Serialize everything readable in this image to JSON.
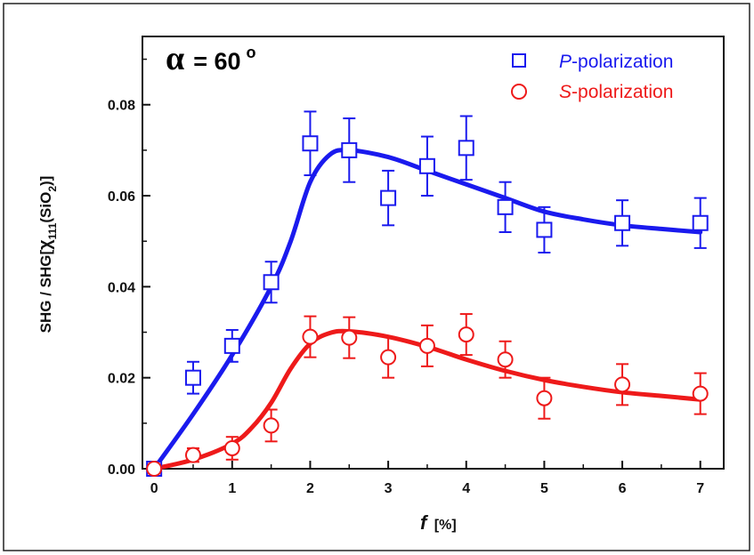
{
  "chart_data": {
    "type": "scatter",
    "annotation": {
      "symbol": "α",
      "text": "= 60",
      "degree": "o"
    },
    "xlabel": {
      "main": "f",
      "unit": "[%]"
    },
    "ylabel": {
      "prefix": "SHG / SHG[",
      "chi": "χ",
      "chi_sub": "111",
      "paren_open": "(SiO",
      "sio_sub": "2",
      "close": ")]"
    },
    "xlim": [
      -0.15,
      7.3
    ],
    "ylim": [
      0.0,
      0.095
    ],
    "xticks": [
      0,
      1,
      2,
      3,
      4,
      5,
      6,
      7
    ],
    "yticks": [
      0.0,
      0.02,
      0.04,
      0.06,
      0.08
    ],
    "xtick_labels": [
      "0",
      "1",
      "2",
      "3",
      "4",
      "5",
      "6",
      "7"
    ],
    "ytick_labels": [
      "0.00",
      "0.02",
      "0.04",
      "0.06",
      "0.08"
    ],
    "grid": false,
    "legend": {
      "placement": "top-right"
    },
    "series": [
      {
        "name_prefix": "P",
        "name_suffix": "-polarization",
        "marker": "square",
        "color": "#1a1aee",
        "x": [
          0,
          0.5,
          1.0,
          1.5,
          2.0,
          2.5,
          3.0,
          3.5,
          4.0,
          4.5,
          5.0,
          6.0,
          7.0
        ],
        "y": [
          0.0,
          0.02,
          0.027,
          0.041,
          0.0715,
          0.07,
          0.0595,
          0.0665,
          0.0705,
          0.0575,
          0.0525,
          0.054,
          0.054
        ],
        "err": [
          0.001,
          0.0035,
          0.0035,
          0.0045,
          0.007,
          0.007,
          0.006,
          0.0065,
          0.007,
          0.0055,
          0.005,
          0.005,
          0.0055
        ],
        "fit": [
          [
            0,
            0.0
          ],
          [
            0.5,
            0.012
          ],
          [
            1.0,
            0.025
          ],
          [
            1.5,
            0.04
          ],
          [
            1.75,
            0.05
          ],
          [
            2.0,
            0.063
          ],
          [
            2.25,
            0.069
          ],
          [
            2.5,
            0.07
          ],
          [
            3.0,
            0.0685
          ],
          [
            3.5,
            0.0655
          ],
          [
            4.0,
            0.0625
          ],
          [
            4.5,
            0.0595
          ],
          [
            5.0,
            0.0565
          ],
          [
            5.5,
            0.0548
          ],
          [
            6.0,
            0.0535
          ],
          [
            6.5,
            0.0527
          ],
          [
            7.0,
            0.052
          ]
        ]
      },
      {
        "name_prefix": "S",
        "name_suffix": "-polarization",
        "marker": "circle",
        "color": "#ee1a1a",
        "x": [
          0,
          0.5,
          1.0,
          1.5,
          2.0,
          2.5,
          3.0,
          3.5,
          4.0,
          4.5,
          5.0,
          6.0,
          7.0
        ],
        "y": [
          0.0,
          0.003,
          0.0045,
          0.0095,
          0.029,
          0.0288,
          0.0245,
          0.027,
          0.0295,
          0.024,
          0.0155,
          0.0185,
          0.0165
        ],
        "err": [
          0.001,
          0.0015,
          0.0025,
          0.0035,
          0.0045,
          0.0045,
          0.0045,
          0.0045,
          0.0045,
          0.004,
          0.0045,
          0.0045,
          0.0045
        ],
        "fit": [
          [
            0,
            0.0
          ],
          [
            0.5,
            0.002
          ],
          [
            1.0,
            0.0055
          ],
          [
            1.25,
            0.009
          ],
          [
            1.5,
            0.0145
          ],
          [
            1.75,
            0.022
          ],
          [
            2.0,
            0.0275
          ],
          [
            2.25,
            0.0298
          ],
          [
            2.5,
            0.0302
          ],
          [
            3.0,
            0.029
          ],
          [
            3.5,
            0.0268
          ],
          [
            4.0,
            0.024
          ],
          [
            4.5,
            0.0215
          ],
          [
            5.0,
            0.0195
          ],
          [
            5.5,
            0.018
          ],
          [
            6.0,
            0.0168
          ],
          [
            6.5,
            0.016
          ],
          [
            7.0,
            0.0152
          ]
        ]
      }
    ]
  }
}
